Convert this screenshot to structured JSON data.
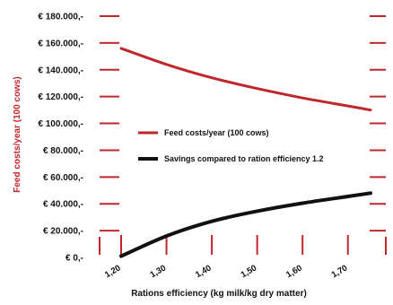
{
  "chart_data": {
    "type": "line",
    "title": "",
    "xlabel": "Rations efficiency (kg milk/kg dry matter)",
    "ylabel": "Feed costs/year (100 cows)",
    "x": [
      1.2,
      1.3,
      1.4,
      1.5,
      1.6,
      1.7,
      1.75
    ],
    "xtick_labels": [
      "1,20",
      "1,30",
      "1,40",
      "1,50",
      "1,60",
      "1,70"
    ],
    "xlim": [
      1.2,
      1.75
    ],
    "ylim": [
      0,
      180000
    ],
    "ytick_labels": [
      "€ 180.000,-",
      "€ 160.000,-",
      "€ 140.000,-",
      "€ 120.000,-",
      "€ 100.000,-",
      "€ 80.000,-",
      "€ 60.000,-",
      "€ 40.000,-",
      "€ 20.000,-",
      "€ 0,-"
    ],
    "yticks": [
      180000,
      160000,
      140000,
      120000,
      100000,
      80000,
      60000,
      40000,
      20000,
      0
    ],
    "series": [
      {
        "name": "Feed costs/year (100 cows)",
        "color": "#c0272d",
        "values": [
          156000,
          144000,
          134000,
          126000,
          119000,
          113000,
          110000
        ]
      },
      {
        "name": "Savings compared to ration efficiency 1.2",
        "color": "#111111",
        "values": [
          1000,
          16000,
          27000,
          34500,
          40500,
          45500,
          48000
        ]
      }
    ],
    "legend_position": "center",
    "grid": false
  }
}
